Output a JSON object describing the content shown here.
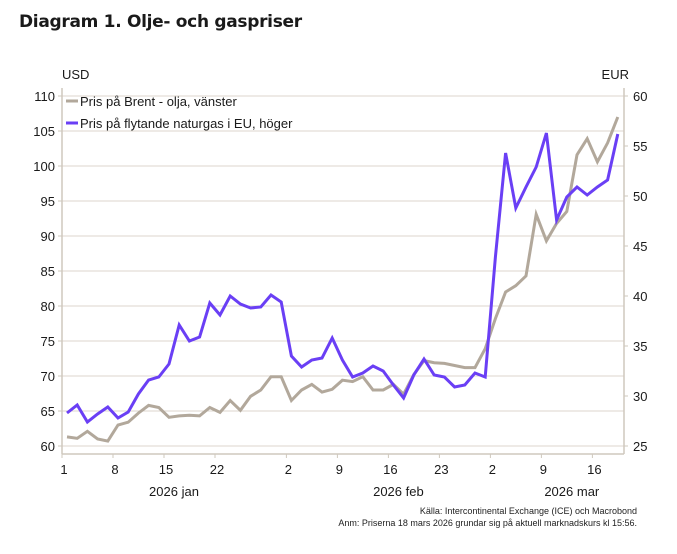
{
  "title": "Diagram 1. Olje- och gaspriser",
  "source": "Källa: Intercontinental Exchange (ICE)  och Macrobond",
  "note": "Anm: Priserna 18 mars 2026 grundar sig på aktuell marknadskurs kl 15:56.",
  "chart_data": {
    "type": "line",
    "title": "Diagram 1. Olje- och gaspriser",
    "xlabel": "",
    "ylabel_left": "USD",
    "ylabel_right": "EUR",
    "ylim_left": [
      60,
      110
    ],
    "ylim_right": [
      25,
      60
    ],
    "yticks_left": [
      60,
      65,
      70,
      75,
      80,
      85,
      90,
      95,
      100,
      105,
      110
    ],
    "yticks_right": [
      25,
      30,
      35,
      40,
      45,
      50,
      55,
      60
    ],
    "grid": true,
    "legend_position": "top-left",
    "x_tick_labels": [
      {
        "index": 0,
        "label": "1"
      },
      {
        "index": 5,
        "label": "8"
      },
      {
        "index": 10,
        "label": "15"
      },
      {
        "index": 15,
        "label": "22"
      },
      {
        "index": 22,
        "label": "2"
      },
      {
        "index": 27,
        "label": "9"
      },
      {
        "index": 32,
        "label": "16"
      },
      {
        "index": 37,
        "label": "23"
      },
      {
        "index": 42,
        "label": "2"
      },
      {
        "index": 47,
        "label": "9"
      },
      {
        "index": 52,
        "label": "16"
      }
    ],
    "x_group_labels": [
      {
        "index": 10,
        "label": "2026 jan"
      },
      {
        "index": 32,
        "label": "2026 feb"
      },
      {
        "index": 49,
        "label": "2026 mar"
      }
    ],
    "x": [
      "2026-01-01",
      "2026-01-02",
      "2026-01-05",
      "2026-01-06",
      "2026-01-07",
      "2026-01-08",
      "2026-01-09",
      "2026-01-12",
      "2026-01-13",
      "2026-01-14",
      "2026-01-15",
      "2026-01-16",
      "2026-01-19",
      "2026-01-20",
      "2026-01-21",
      "2026-01-22",
      "2026-01-23",
      "2026-01-26",
      "2026-01-27",
      "2026-01-28",
      "2026-01-29",
      "2026-01-30",
      "2026-02-02",
      "2026-02-03",
      "2026-02-04",
      "2026-02-05",
      "2026-02-06",
      "2026-02-09",
      "2026-02-10",
      "2026-02-11",
      "2026-02-12",
      "2026-02-13",
      "2026-02-16",
      "2026-02-17",
      "2026-02-18",
      "2026-02-19",
      "2026-02-20",
      "2026-02-23",
      "2026-02-24",
      "2026-02-25",
      "2026-02-26",
      "2026-02-27",
      "2026-03-02",
      "2026-03-03",
      "2026-03-04",
      "2026-03-05",
      "2026-03-06",
      "2026-03-09",
      "2026-03-10",
      "2026-03-11",
      "2026-03-12",
      "2026-03-13",
      "2026-03-16",
      "2026-03-17",
      "2026-03-18"
    ],
    "series": [
      {
        "name": "Pris på Brent - olja, vänster",
        "axis": "left",
        "color": "#b2a89b",
        "values": [
          61.3,
          61.1,
          62.1,
          61.0,
          60.7,
          63.0,
          63.4,
          64.7,
          65.8,
          65.5,
          64.1,
          64.3,
          64.4,
          64.3,
          65.5,
          64.8,
          66.5,
          65.1,
          67.1,
          68.0,
          69.9,
          69.9,
          66.5,
          68.0,
          68.8,
          67.7,
          68.1,
          69.4,
          69.2,
          69.9,
          68.0,
          68.0,
          68.8,
          67.4,
          70.2,
          72.2,
          71.9,
          71.8,
          71.5,
          71.2,
          71.2,
          73.9,
          78.2,
          82.0,
          82.9,
          84.3,
          93.1,
          89.3,
          91.8,
          93.5,
          101.6,
          103.9,
          100.6,
          103.3,
          107.0
        ]
      },
      {
        "name": "Pris på flytande naturgas i EU, höger",
        "axis": "right",
        "color": "#6a3ff5",
        "values": [
          28.3,
          29.1,
          27.4,
          28.2,
          28.9,
          27.8,
          28.4,
          30.2,
          31.6,
          31.9,
          33.2,
          37.1,
          35.5,
          35.9,
          39.3,
          38.1,
          40.0,
          39.2,
          38.8,
          38.9,
          40.1,
          39.4,
          34.0,
          32.9,
          33.6,
          33.8,
          35.8,
          33.6,
          31.9,
          32.3,
          33.0,
          32.5,
          31.1,
          29.8,
          32.1,
          33.7,
          32.1,
          31.9,
          30.9,
          31.1,
          32.3,
          31.9,
          43.9,
          54.3,
          48.8,
          50.9,
          52.9,
          56.3,
          47.6,
          49.9,
          50.9,
          50.1,
          50.9,
          51.6,
          56.2
        ]
      }
    ]
  }
}
